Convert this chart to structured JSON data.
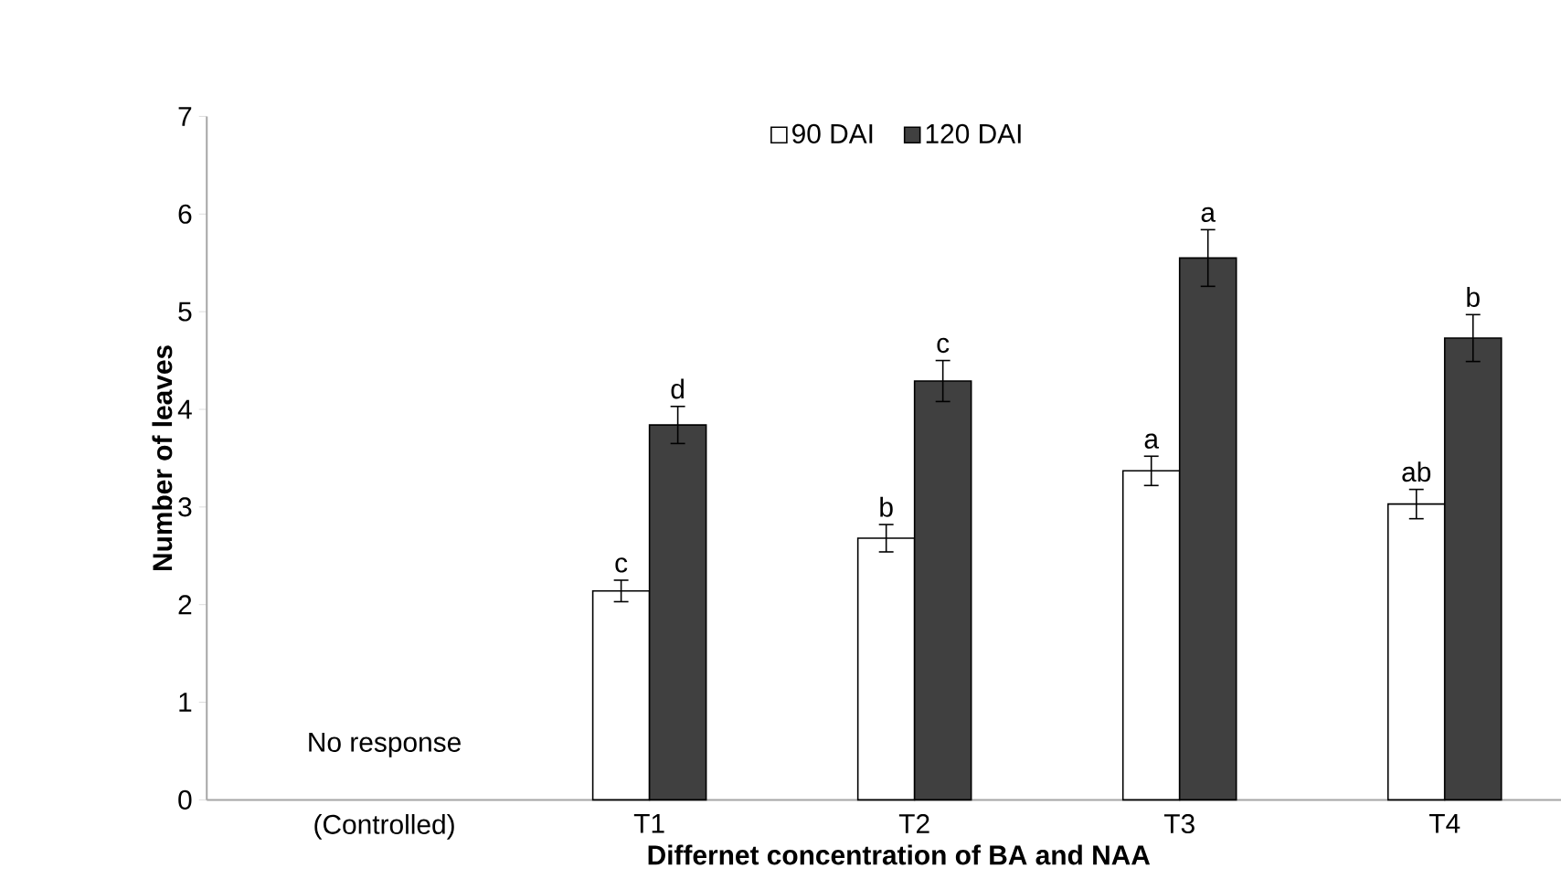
{
  "chart_data": {
    "type": "bar",
    "xlabel": "Differnet concentration of BA and NAA",
    "ylabel": "Number of leaves",
    "categories": [
      "(Controlled)",
      "T1",
      "T2",
      "T3",
      "T4"
    ],
    "series": [
      {
        "name": "90 DAI",
        "color": "#ffffff",
        "values": [
          null,
          2.14,
          2.68,
          3.37,
          3.03
        ],
        "errors": [
          null,
          0.11,
          0.14,
          0.15,
          0.15
        ]
      },
      {
        "name": "120 DAI",
        "color": "#404040",
        "values": [
          null,
          3.84,
          4.29,
          5.55,
          4.73
        ],
        "errors": [
          null,
          0.19,
          0.21,
          0.29,
          0.24
        ]
      }
    ],
    "ylim": [
      0,
      7
    ],
    "yticks": [
      0,
      1,
      2,
      3,
      4,
      5,
      6,
      7
    ],
    "legend": "top",
    "annotations": [
      "No response",
      "c",
      "d",
      "b",
      "c",
      "a",
      "a",
      "ab",
      "b"
    ]
  }
}
